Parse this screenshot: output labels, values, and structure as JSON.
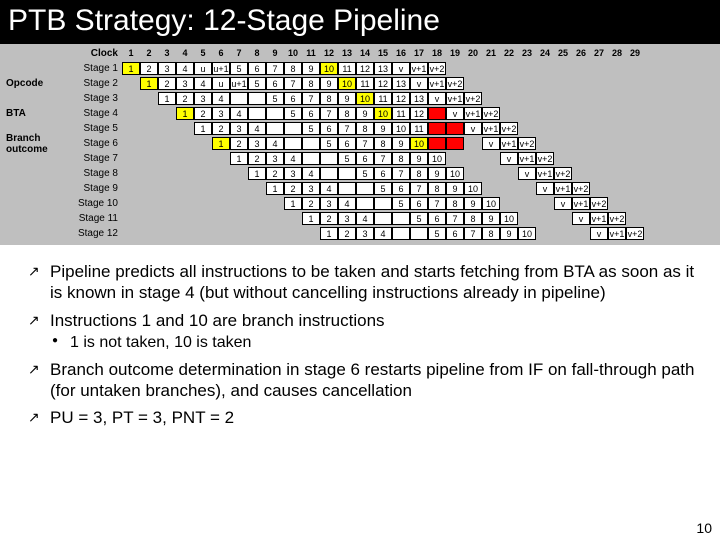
{
  "title": "PTB Strategy: 12-Stage Pipeline",
  "page_number": "10",
  "side_labels": [
    "",
    "Opcode",
    "",
    "BTA",
    "",
    "Branch outcome",
    "",
    "",
    "",
    "",
    "",
    ""
  ],
  "clock_label": "Clock",
  "clock_cols": [
    "1",
    "2",
    "3",
    "4",
    "5",
    "6",
    "7",
    "8",
    "9",
    "10",
    "11",
    "12",
    "13",
    "14",
    "15",
    "16",
    "17",
    "18",
    "19",
    "20",
    "21",
    "22",
    "23",
    "24",
    "25",
    "26",
    "27",
    "28",
    "29"
  ],
  "stage_label_prefix": "Stage ",
  "grid": [
    [
      [
        "1",
        "g"
      ],
      [
        "2",
        ""
      ],
      [
        "3",
        ""
      ],
      [
        "4",
        ""
      ],
      [
        "u",
        ""
      ],
      [
        "u+1",
        ""
      ],
      [
        "5",
        ""
      ],
      [
        "6",
        ""
      ],
      [
        "7",
        ""
      ],
      [
        "8",
        ""
      ],
      [
        "9",
        ""
      ],
      [
        "10",
        "y"
      ],
      [
        "11",
        ""
      ],
      [
        "12",
        ""
      ],
      [
        "13",
        ""
      ],
      [
        "v",
        ""
      ],
      [
        "v+1",
        ""
      ],
      [
        "v+2",
        ""
      ],
      null,
      null,
      null,
      null,
      null,
      null,
      null,
      null,
      null,
      null,
      null
    ],
    [
      null,
      [
        "1",
        "g"
      ],
      [
        "2",
        ""
      ],
      [
        "3",
        ""
      ],
      [
        "4",
        ""
      ],
      [
        "u",
        ""
      ],
      [
        "u+1",
        ""
      ],
      [
        "5",
        ""
      ],
      [
        "6",
        ""
      ],
      [
        "7",
        ""
      ],
      [
        "8",
        ""
      ],
      [
        "9",
        ""
      ],
      [
        "10",
        "y"
      ],
      [
        "11",
        ""
      ],
      [
        "12",
        ""
      ],
      [
        "13",
        ""
      ],
      [
        "v",
        ""
      ],
      [
        "v+1",
        ""
      ],
      [
        "v+2",
        ""
      ],
      null,
      null,
      null,
      null,
      null,
      null,
      null,
      null,
      null,
      null
    ],
    [
      null,
      null,
      [
        "1",
        ""
      ],
      [
        "2",
        ""
      ],
      [
        "3",
        ""
      ],
      [
        "4",
        ""
      ],
      [
        "",
        ""
      ],
      [
        "",
        ""
      ],
      [
        "5",
        ""
      ],
      [
        "6",
        ""
      ],
      [
        "7",
        ""
      ],
      [
        "8",
        ""
      ],
      [
        "9",
        ""
      ],
      [
        "10",
        "y"
      ],
      [
        "11",
        ""
      ],
      [
        "12",
        ""
      ],
      [
        "13",
        ""
      ],
      [
        "v",
        ""
      ],
      [
        "v+1",
        ""
      ],
      [
        "v+2",
        ""
      ],
      null,
      null,
      null,
      null,
      null,
      null,
      null,
      null,
      null
    ],
    [
      null,
      null,
      null,
      [
        "1",
        "g"
      ],
      [
        "2",
        ""
      ],
      [
        "3",
        ""
      ],
      [
        "4",
        ""
      ],
      [
        "",
        ""
      ],
      [
        "",
        ""
      ],
      [
        "5",
        ""
      ],
      [
        "6",
        ""
      ],
      [
        "7",
        ""
      ],
      [
        "8",
        ""
      ],
      [
        "9",
        ""
      ],
      [
        "10",
        "y"
      ],
      [
        "11",
        ""
      ],
      [
        "12",
        ""
      ],
      [
        "",
        "r"
      ],
      [
        "v",
        ""
      ],
      [
        "v+1",
        ""
      ],
      [
        "v+2",
        ""
      ],
      null,
      null,
      null,
      null,
      null,
      null,
      null,
      null
    ],
    [
      null,
      null,
      null,
      null,
      [
        "1",
        ""
      ],
      [
        "2",
        ""
      ],
      [
        "3",
        ""
      ],
      [
        "4",
        ""
      ],
      [
        "",
        ""
      ],
      [
        "",
        ""
      ],
      [
        "5",
        ""
      ],
      [
        "6",
        ""
      ],
      [
        "7",
        ""
      ],
      [
        "8",
        ""
      ],
      [
        "9",
        ""
      ],
      [
        "10",
        ""
      ],
      [
        "11",
        ""
      ],
      [
        "",
        "r"
      ],
      [
        "",
        "r"
      ],
      [
        "v",
        ""
      ],
      [
        "v+1",
        ""
      ],
      [
        "v+2",
        ""
      ],
      null,
      null,
      null,
      null,
      null,
      null,
      null
    ],
    [
      null,
      null,
      null,
      null,
      null,
      [
        "1",
        "g"
      ],
      [
        "2",
        ""
      ],
      [
        "3",
        ""
      ],
      [
        "4",
        ""
      ],
      [
        "",
        ""
      ],
      [
        "",
        ""
      ],
      [
        "5",
        ""
      ],
      [
        "6",
        ""
      ],
      [
        "7",
        ""
      ],
      [
        "8",
        ""
      ],
      [
        "9",
        ""
      ],
      [
        "10",
        "y"
      ],
      [
        "",
        "r"
      ],
      [
        "",
        "r"
      ],
      null,
      [
        "v",
        ""
      ],
      [
        "v+1",
        ""
      ],
      [
        "v+2",
        ""
      ],
      null,
      null,
      null,
      null,
      null,
      null
    ],
    [
      null,
      null,
      null,
      null,
      null,
      null,
      [
        "1",
        ""
      ],
      [
        "2",
        ""
      ],
      [
        "3",
        ""
      ],
      [
        "4",
        ""
      ],
      [
        "",
        ""
      ],
      [
        "",
        ""
      ],
      [
        "5",
        ""
      ],
      [
        "6",
        ""
      ],
      [
        "7",
        ""
      ],
      [
        "8",
        ""
      ],
      [
        "9",
        ""
      ],
      [
        "10",
        ""
      ],
      null,
      null,
      null,
      [
        "v",
        ""
      ],
      [
        "v+1",
        ""
      ],
      [
        "v+2",
        ""
      ],
      null,
      null,
      null,
      null,
      null
    ],
    [
      null,
      null,
      null,
      null,
      null,
      null,
      null,
      [
        "1",
        ""
      ],
      [
        "2",
        ""
      ],
      [
        "3",
        ""
      ],
      [
        "4",
        ""
      ],
      [
        "",
        ""
      ],
      [
        "",
        ""
      ],
      [
        "5",
        ""
      ],
      [
        "6",
        ""
      ],
      [
        "7",
        ""
      ],
      [
        "8",
        ""
      ],
      [
        "9",
        ""
      ],
      [
        "10",
        ""
      ],
      null,
      null,
      null,
      [
        "v",
        ""
      ],
      [
        "v+1",
        ""
      ],
      [
        "v+2",
        ""
      ],
      null,
      null,
      null,
      null
    ],
    [
      null,
      null,
      null,
      null,
      null,
      null,
      null,
      null,
      [
        "1",
        ""
      ],
      [
        "2",
        ""
      ],
      [
        "3",
        ""
      ],
      [
        "4",
        ""
      ],
      [
        "",
        ""
      ],
      [
        "",
        ""
      ],
      [
        "5",
        ""
      ],
      [
        "6",
        ""
      ],
      [
        "7",
        ""
      ],
      [
        "8",
        ""
      ],
      [
        "9",
        ""
      ],
      [
        "10",
        ""
      ],
      null,
      null,
      null,
      [
        "v",
        ""
      ],
      [
        "v+1",
        ""
      ],
      [
        "v+2",
        ""
      ],
      null,
      null,
      null
    ],
    [
      null,
      null,
      null,
      null,
      null,
      null,
      null,
      null,
      null,
      [
        "1",
        ""
      ],
      [
        "2",
        ""
      ],
      [
        "3",
        ""
      ],
      [
        "4",
        ""
      ],
      [
        "",
        ""
      ],
      [
        "",
        ""
      ],
      [
        "5",
        ""
      ],
      [
        "6",
        ""
      ],
      [
        "7",
        ""
      ],
      [
        "8",
        ""
      ],
      [
        "9",
        ""
      ],
      [
        "10",
        ""
      ],
      null,
      null,
      null,
      [
        "v",
        ""
      ],
      [
        "v+1",
        ""
      ],
      [
        "v+2",
        ""
      ],
      null,
      null
    ],
    [
      null,
      null,
      null,
      null,
      null,
      null,
      null,
      null,
      null,
      null,
      [
        "1",
        ""
      ],
      [
        "2",
        ""
      ],
      [
        "3",
        ""
      ],
      [
        "4",
        ""
      ],
      [
        "",
        ""
      ],
      [
        "",
        ""
      ],
      [
        "5",
        ""
      ],
      [
        "6",
        ""
      ],
      [
        "7",
        ""
      ],
      [
        "8",
        ""
      ],
      [
        "9",
        ""
      ],
      [
        "10",
        ""
      ],
      null,
      null,
      null,
      [
        "v",
        ""
      ],
      [
        "v+1",
        ""
      ],
      [
        "v+2",
        ""
      ],
      null
    ],
    [
      null,
      null,
      null,
      null,
      null,
      null,
      null,
      null,
      null,
      null,
      null,
      [
        "1",
        ""
      ],
      [
        "2",
        ""
      ],
      [
        "3",
        ""
      ],
      [
        "4",
        ""
      ],
      [
        "",
        ""
      ],
      [
        "",
        ""
      ],
      [
        "5",
        ""
      ],
      [
        "6",
        ""
      ],
      [
        "7",
        ""
      ],
      [
        "8",
        ""
      ],
      [
        "9",
        ""
      ],
      [
        "10",
        ""
      ],
      null,
      null,
      null,
      [
        "v",
        ""
      ],
      [
        "v+1",
        ""
      ],
      [
        "v+2",
        ""
      ]
    ]
  ],
  "cell_colors": {
    "g": "#ffff00",
    "y": "#ffff00",
    "r": "#ff0000",
    "": "#ffffff"
  },
  "bullets": [
    {
      "text": "Pipeline predicts all instructions to be taken and starts fetching from BTA as soon as it is known in stage 4 (but without cancelling instructions already in pipeline)"
    },
    {
      "text": "Instructions 1 and 10 are branch instructions",
      "sub": [
        "1 is not taken, 10 is taken"
      ]
    },
    {
      "text": "Branch outcome determination in stage 6 restarts pipeline from IF on fall-through path (for untaken branches), and causes cancellation"
    },
    {
      "text": "PU = 3, PT = 3, PNT = 2"
    }
  ],
  "colors": {
    "title_bg": "#000000",
    "title_fg": "#ffffff",
    "chart_bg": "#bfbfbf",
    "green": "#ffff00",
    "red": "#ff0000"
  }
}
